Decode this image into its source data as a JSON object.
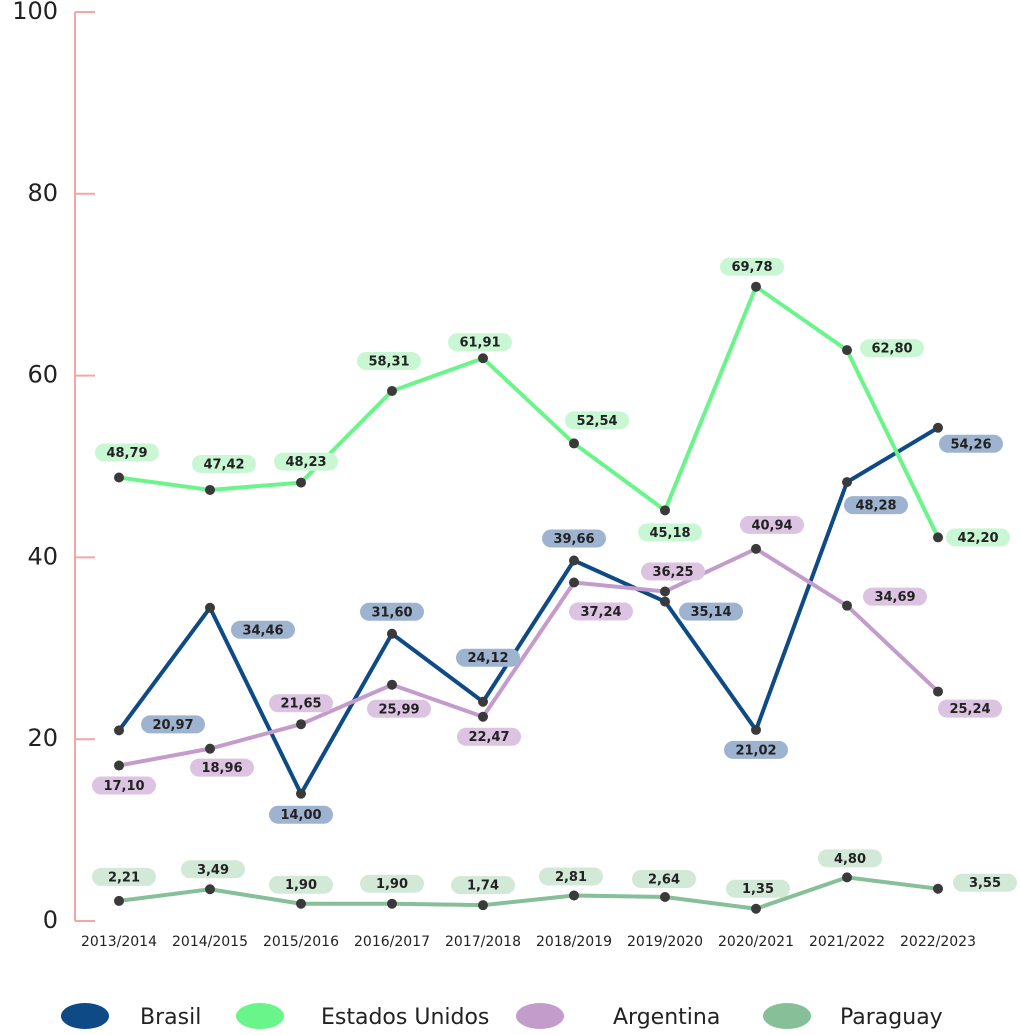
{
  "chart_data": {
    "type": "line",
    "categories": [
      "2013/2014",
      "2014/2015",
      "2015/2016",
      "2016/2017",
      "2017/2018",
      "2018/2019",
      "2019/2020",
      "2020/2021",
      "2021/2022",
      "2022/2023"
    ],
    "series": [
      {
        "name": "Brasil",
        "color": "#0d4a86",
        "label_color": "#9db3cf",
        "values": [
          20.97,
          34.46,
          14.0,
          31.6,
          24.12,
          39.66,
          35.14,
          21.02,
          48.28,
          54.26
        ],
        "value_labels": [
          "20,97",
          "34,46",
          "14,00",
          "31,60",
          "24,12",
          "39,66",
          "35,14",
          "21,02",
          "48,28",
          "54,26"
        ]
      },
      {
        "name": "Estados Unidos",
        "color": "#6af58a",
        "label_color": "#c9f7d4",
        "values": [
          48.79,
          47.42,
          48.23,
          58.31,
          61.91,
          52.54,
          45.18,
          69.78,
          62.8,
          42.2
        ],
        "value_labels": [
          "48,79",
          "47,42",
          "48,23",
          "58,31",
          "61,91",
          "52,54",
          "45,18",
          "69,78",
          "62,80",
          "42,20"
        ]
      },
      {
        "name": "Argentina",
        "color": "#c39ccc",
        "label_color": "#dcc3e1",
        "values": [
          17.1,
          18.96,
          21.65,
          25.99,
          22.47,
          37.24,
          36.25,
          40.94,
          34.69,
          25.24
        ],
        "value_labels": [
          "17,10",
          "18,96",
          "21,65",
          "25,99",
          "22,47",
          "37,24",
          "36,25",
          "40,94",
          "34,69",
          "25,24"
        ]
      },
      {
        "name": "Paraguay",
        "color": "#86bf98",
        "label_color": "#d3e9d8",
        "values": [
          2.21,
          3.49,
          1.9,
          1.9,
          1.74,
          2.81,
          2.64,
          1.35,
          4.8,
          3.55
        ],
        "value_labels": [
          "2,21",
          "3,49",
          "1,90",
          "1,90",
          "1,74",
          "2,81",
          "2,64",
          "1,35",
          "4,80",
          "3,55"
        ]
      }
    ],
    "ylim": [
      0,
      100
    ],
    "yticks": [
      0,
      20,
      40,
      60,
      80,
      100
    ],
    "legend": "bottom"
  }
}
